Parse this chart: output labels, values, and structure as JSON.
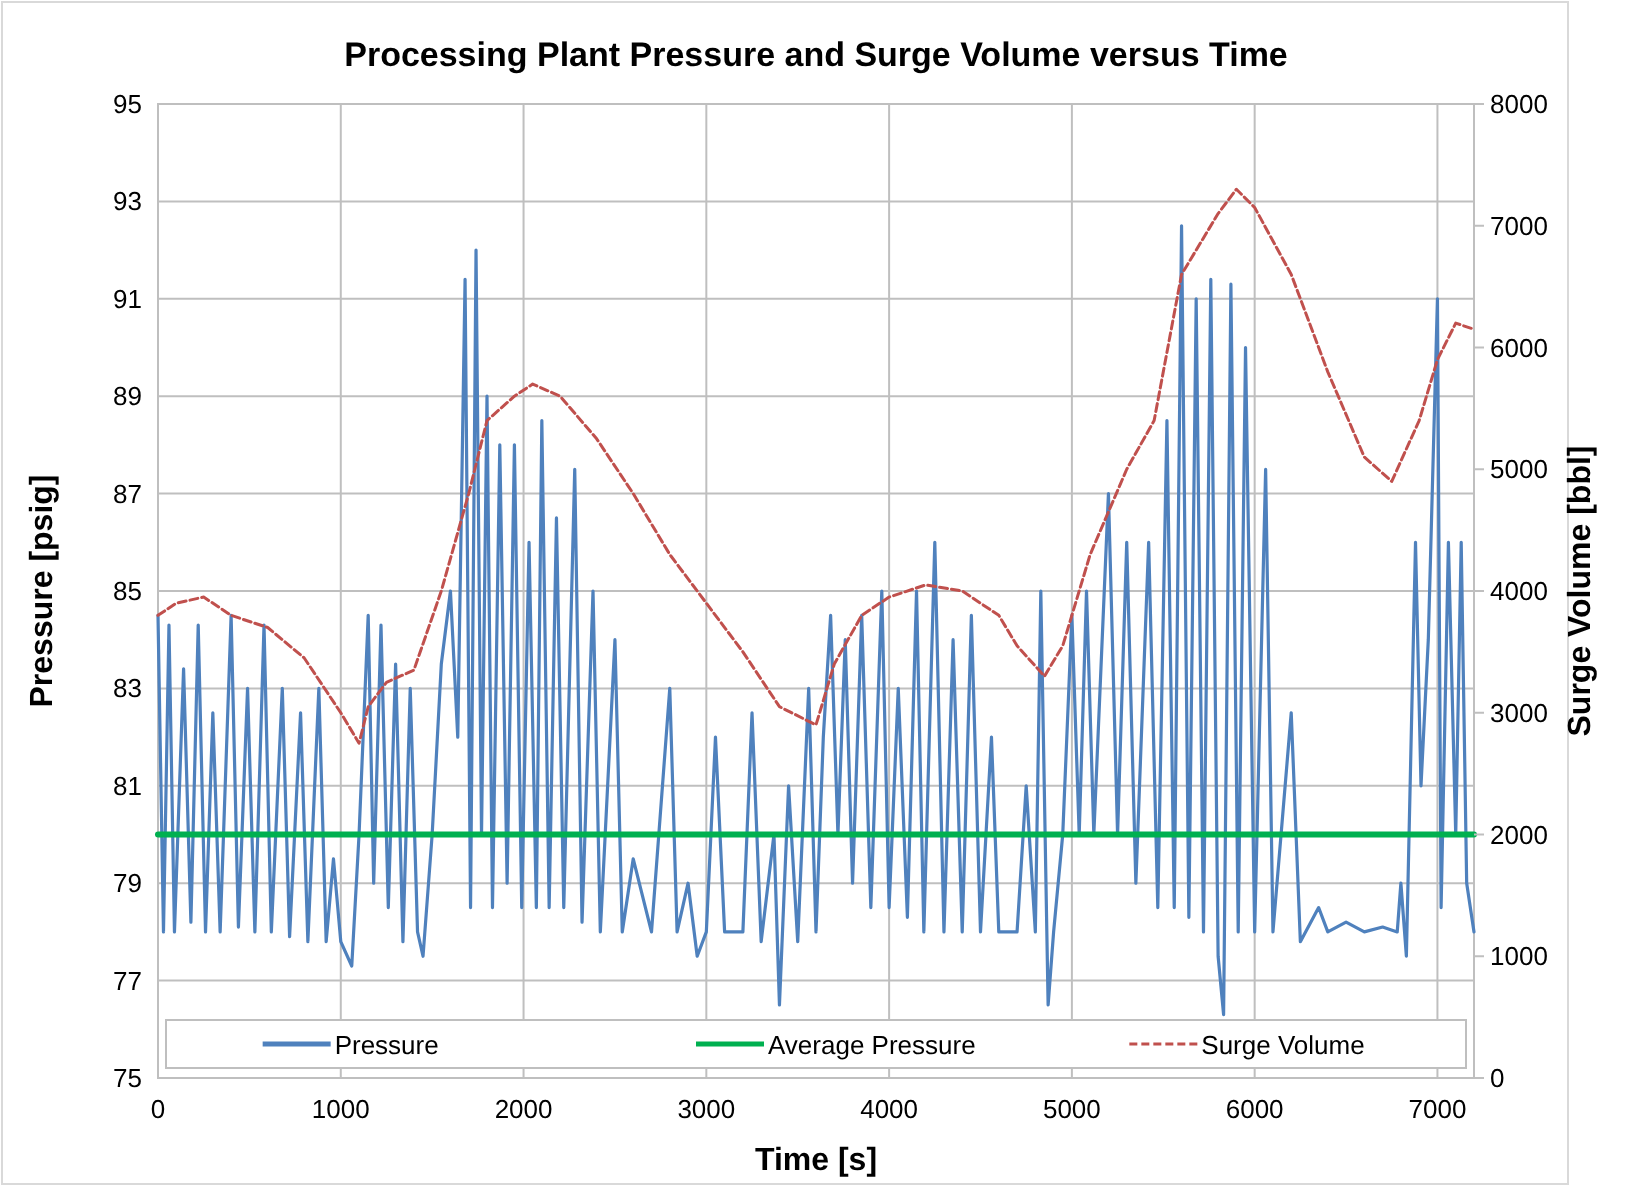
{
  "chart_data": {
    "type": "line",
    "title": "Processing Plant Pressure and Surge Volume versus Time",
    "xlabel": "Time [s]",
    "ylabel": "Pressure [psig]",
    "y2label": "Surge Volume [bbl]",
    "xlim": [
      0,
      7200
    ],
    "xticks": [
      0,
      1000,
      2000,
      3000,
      4000,
      5000,
      6000,
      7000
    ],
    "ylim": [
      75,
      95
    ],
    "yticks": [
      75,
      77,
      79,
      81,
      83,
      85,
      87,
      89,
      91,
      93,
      95
    ],
    "y2lim": [
      0,
      8000
    ],
    "y2ticks": [
      0,
      1000,
      2000,
      3000,
      4000,
      5000,
      6000,
      7000,
      8000
    ],
    "grid": true,
    "legend": "bottom",
    "series": [
      {
        "name": "Pressure",
        "color": "#4f81bd",
        "line_style": "solid",
        "x": [
          0,
          30,
          60,
          90,
          140,
          180,
          220,
          260,
          300,
          340,
          400,
          440,
          490,
          530,
          580,
          620,
          680,
          720,
          780,
          820,
          880,
          920,
          960,
          1000,
          1060,
          1100,
          1150,
          1180,
          1220,
          1260,
          1300,
          1340,
          1380,
          1420,
          1450,
          1500,
          1550,
          1600,
          1640,
          1680,
          1710,
          1740,
          1770,
          1800,
          1830,
          1870,
          1910,
          1950,
          1990,
          2030,
          2070,
          2100,
          2140,
          2180,
          2220,
          2280,
          2320,
          2380,
          2420,
          2500,
          2540,
          2600,
          2700,
          2800,
          2840,
          2900,
          2950,
          3000,
          3050,
          3100,
          3200,
          3250,
          3300,
          3370,
          3400,
          3450,
          3500,
          3560,
          3600,
          3640,
          3680,
          3720,
          3760,
          3800,
          3850,
          3900,
          3960,
          4000,
          4050,
          4100,
          4150,
          4190,
          4250,
          4300,
          4350,
          4400,
          4450,
          4500,
          4560,
          4600,
          4700,
          4750,
          4800,
          4830,
          4870,
          4900,
          4950,
          5000,
          5040,
          5080,
          5120,
          5200,
          5250,
          5300,
          5350,
          5420,
          5470,
          5520,
          5560,
          5600,
          5640,
          5680,
          5720,
          5760,
          5800,
          5830,
          5870,
          5910,
          5950,
          6000,
          6060,
          6100,
          6200,
          6250,
          6350,
          6400,
          6500,
          6600,
          6700,
          6780,
          6800,
          6830,
          6880,
          6910,
          6950,
          7000,
          7020,
          7060,
          7100,
          7130,
          7160,
          7200
        ],
        "values": [
          84.5,
          78,
          84.3,
          78,
          83.4,
          78.2,
          84.3,
          78,
          82.5,
          78,
          84.5,
          78.1,
          83,
          78,
          84.3,
          78,
          83,
          77.9,
          82.5,
          77.8,
          83,
          77.8,
          79.5,
          77.8,
          77.3,
          80,
          84.5,
          79,
          84.3,
          78.5,
          83.5,
          77.8,
          83,
          78,
          77.5,
          80,
          83.5,
          85,
          82,
          91.4,
          78.5,
          92,
          80,
          89,
          78.5,
          88,
          79,
          88,
          78.5,
          86,
          78.5,
          88.5,
          78.5,
          86.5,
          78.5,
          87.5,
          78.2,
          85,
          78,
          84,
          78,
          79.5,
          78,
          83,
          78,
          79,
          77.5,
          78,
          82,
          78,
          78,
          82.5,
          77.8,
          80,
          76.5,
          81,
          77.8,
          83,
          78,
          82,
          84.5,
          80,
          84,
          79,
          84.5,
          78.5,
          85,
          78.5,
          83,
          78.3,
          85,
          78,
          86,
          78,
          84,
          78,
          84.5,
          78,
          82,
          78,
          78,
          81,
          78,
          85,
          76.5,
          78,
          80,
          84.5,
          80,
          85,
          80,
          87,
          80,
          86,
          79,
          86,
          78.5,
          88.5,
          78.5,
          92.5,
          78.3,
          91,
          78,
          91.4,
          77.5,
          76.3,
          91.3,
          78,
          90,
          78,
          87.5,
          78,
          82.5,
          77.8,
          78.5,
          78,
          78.2,
          78,
          78.1,
          78,
          79,
          77.5,
          86,
          81,
          84,
          91,
          78.5,
          86,
          80,
          86,
          79,
          78
        ]
      },
      {
        "name": "Average Pressure",
        "color": "#00b050",
        "line_style": "solid",
        "x": [
          0,
          7200
        ],
        "values": [
          80,
          80
        ]
      },
      {
        "name": "Surge Volume",
        "color": "#c0504d",
        "line_style": "dashed",
        "axis": "y2",
        "x": [
          0,
          100,
          250,
          400,
          600,
          800,
          1000,
          1100,
          1150,
          1250,
          1400,
          1550,
          1700,
          1800,
          1950,
          2050,
          2200,
          2400,
          2600,
          2800,
          3000,
          3200,
          3400,
          3600,
          3700,
          3850,
          4000,
          4200,
          4400,
          4600,
          4700,
          4850,
          4950,
          5100,
          5300,
          5450,
          5600,
          5800,
          5900,
          6000,
          6200,
          6400,
          6600,
          6750,
          6900,
          7000,
          7100,
          7200
        ],
        "values": [
          3800,
          3900,
          3950,
          3800,
          3700,
          3450,
          3000,
          2750,
          3050,
          3250,
          3350,
          4000,
          4800,
          5400,
          5600,
          5700,
          5600,
          5250,
          4800,
          4300,
          3900,
          3500,
          3050,
          2900,
          3400,
          3800,
          3950,
          4050,
          4000,
          3800,
          3550,
          3300,
          3550,
          4300,
          5000,
          5400,
          6600,
          7100,
          7300,
          7150,
          6600,
          5800,
          5100,
          4900,
          5400,
          5900,
          6200,
          6150
        ]
      }
    ]
  }
}
